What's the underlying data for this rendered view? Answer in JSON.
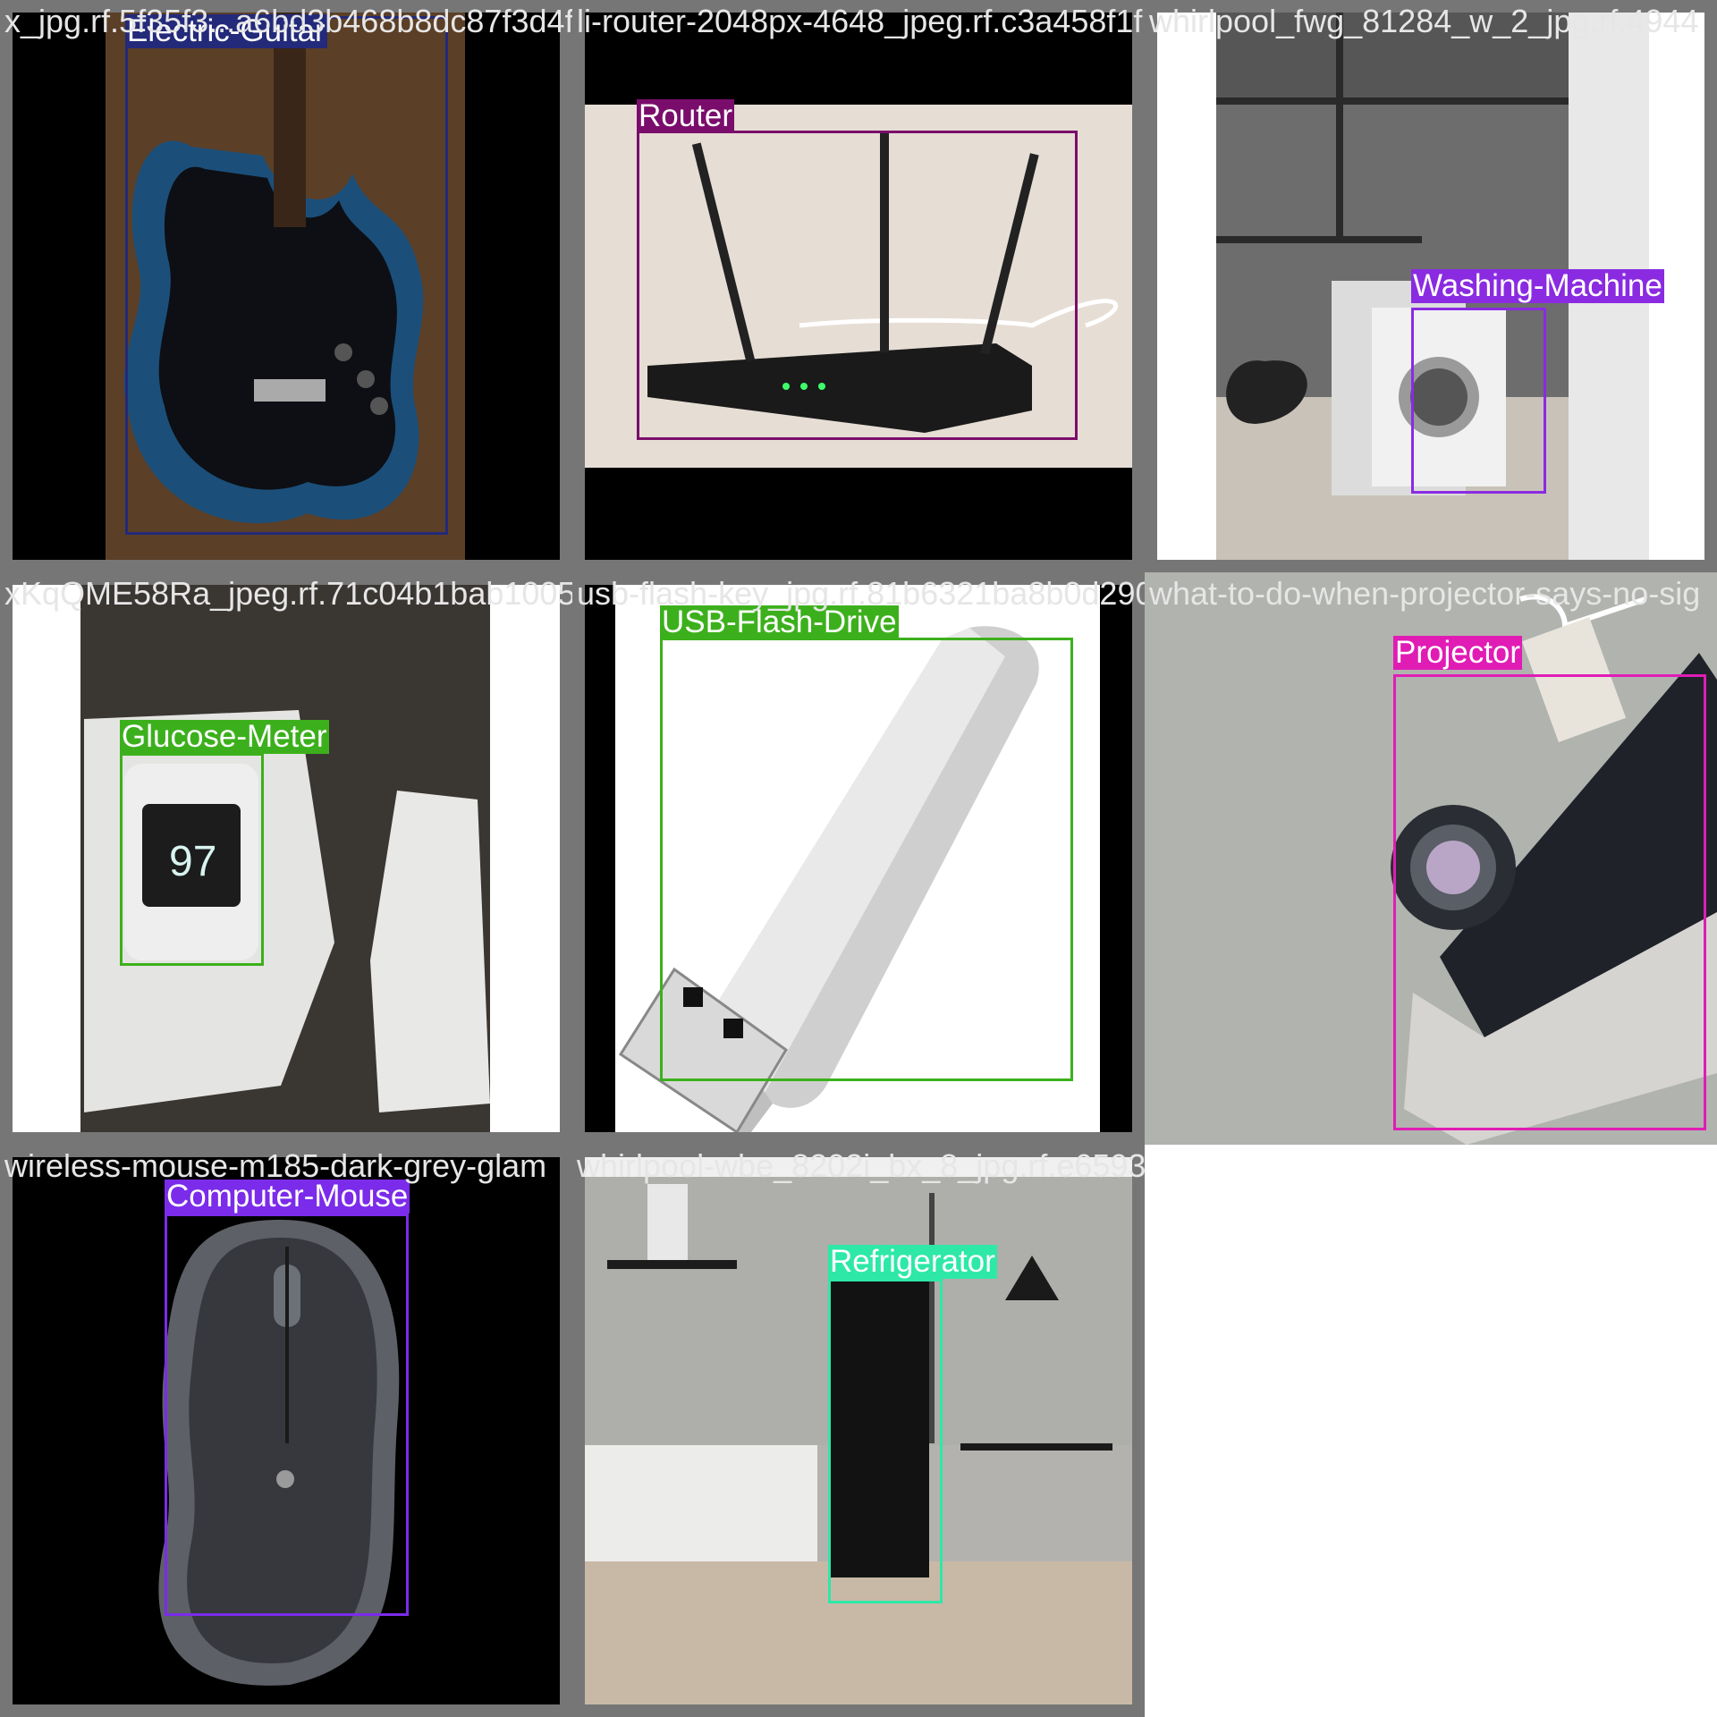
{
  "tiles": [
    {
      "file": "x_jpg.rf.5f35f3...a6bd3b468b8dc87f3d4f38fc",
      "label": "Electric-Guitar",
      "color": "#232a7a"
    },
    {
      "file": "li-router-2048px-4648_jpeg.rf.c3a458f1f",
      "label": "Router",
      "color": "#7a0d6b"
    },
    {
      "file": "whirlpool_fwg_81284_w_2_jpg.rf.4944",
      "label": "Washing-Machine",
      "color": "#8a2be2"
    },
    {
      "file": "xKqQME58Ra_jpeg.rf.71c04b1bab1005f1f5e4f99",
      "label": "Glucose-Meter",
      "color": "#3cb01c"
    },
    {
      "file": "usb-flash-key_jpg.rf.81b6321ba8b0d290214",
      "label": "USB-Flash-Drive",
      "color": "#3cb01c"
    },
    {
      "file": "what-to-do-when-projector-says-no-sig",
      "label": "Projector",
      "color": "#e01cb5"
    },
    {
      "file": "wireless-mouse-m185-dark-grey-glam",
      "label": "Computer-Mouse",
      "color": "#7b2bea"
    },
    {
      "file": "whirlpool-wbe_8202i_bx_8_jpg.rf.e6593055",
      "label": "Refrigerator",
      "color": "#2ee8a8"
    }
  ]
}
